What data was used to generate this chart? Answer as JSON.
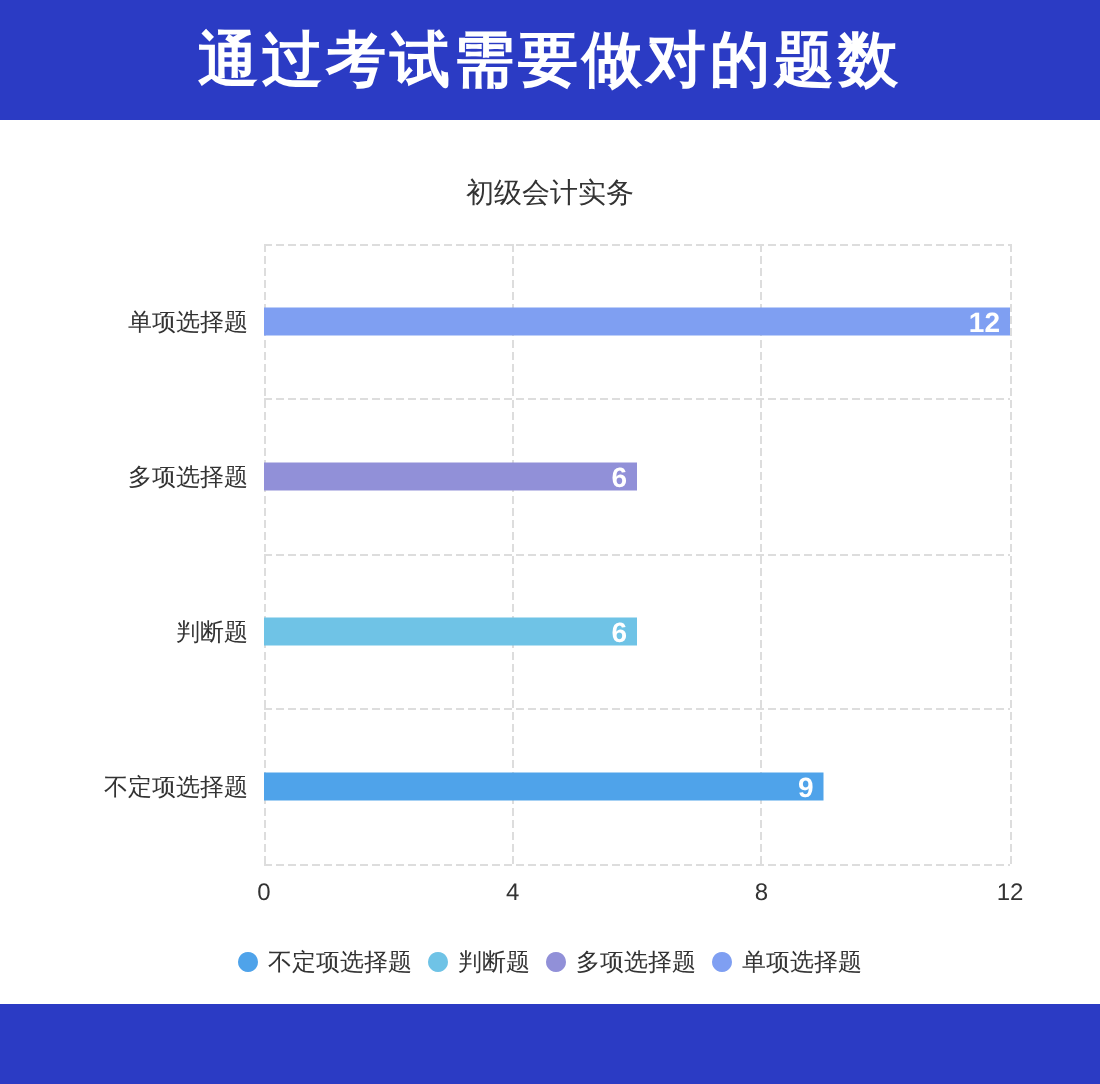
{
  "chart_data": {
    "type": "bar",
    "orientation": "horizontal",
    "title": "通过考试需要做对的题数",
    "subtitle": "初级会计实务",
    "categories": [
      "单项选择题",
      "多项选择题",
      "判断题",
      "不定项选择题"
    ],
    "series": [
      {
        "name": "不定项选择题",
        "color": "#4fa3ea",
        "values": [
          null,
          null,
          null,
          9
        ]
      },
      {
        "name": "判断题",
        "color": "#6fc3e6",
        "values": [
          null,
          null,
          6,
          null
        ]
      },
      {
        "name": "多项选择题",
        "color": "#9190d8",
        "values": [
          null,
          6,
          null,
          null
        ]
      },
      {
        "name": "单项选择题",
        "color": "#7f9ff2",
        "values": [
          12,
          null,
          null,
          null
        ]
      }
    ],
    "xlim": [
      0,
      12
    ],
    "xticks": [
      0,
      4,
      8,
      12
    ],
    "grid": true,
    "legend": "bottom",
    "data_labels": true
  }
}
